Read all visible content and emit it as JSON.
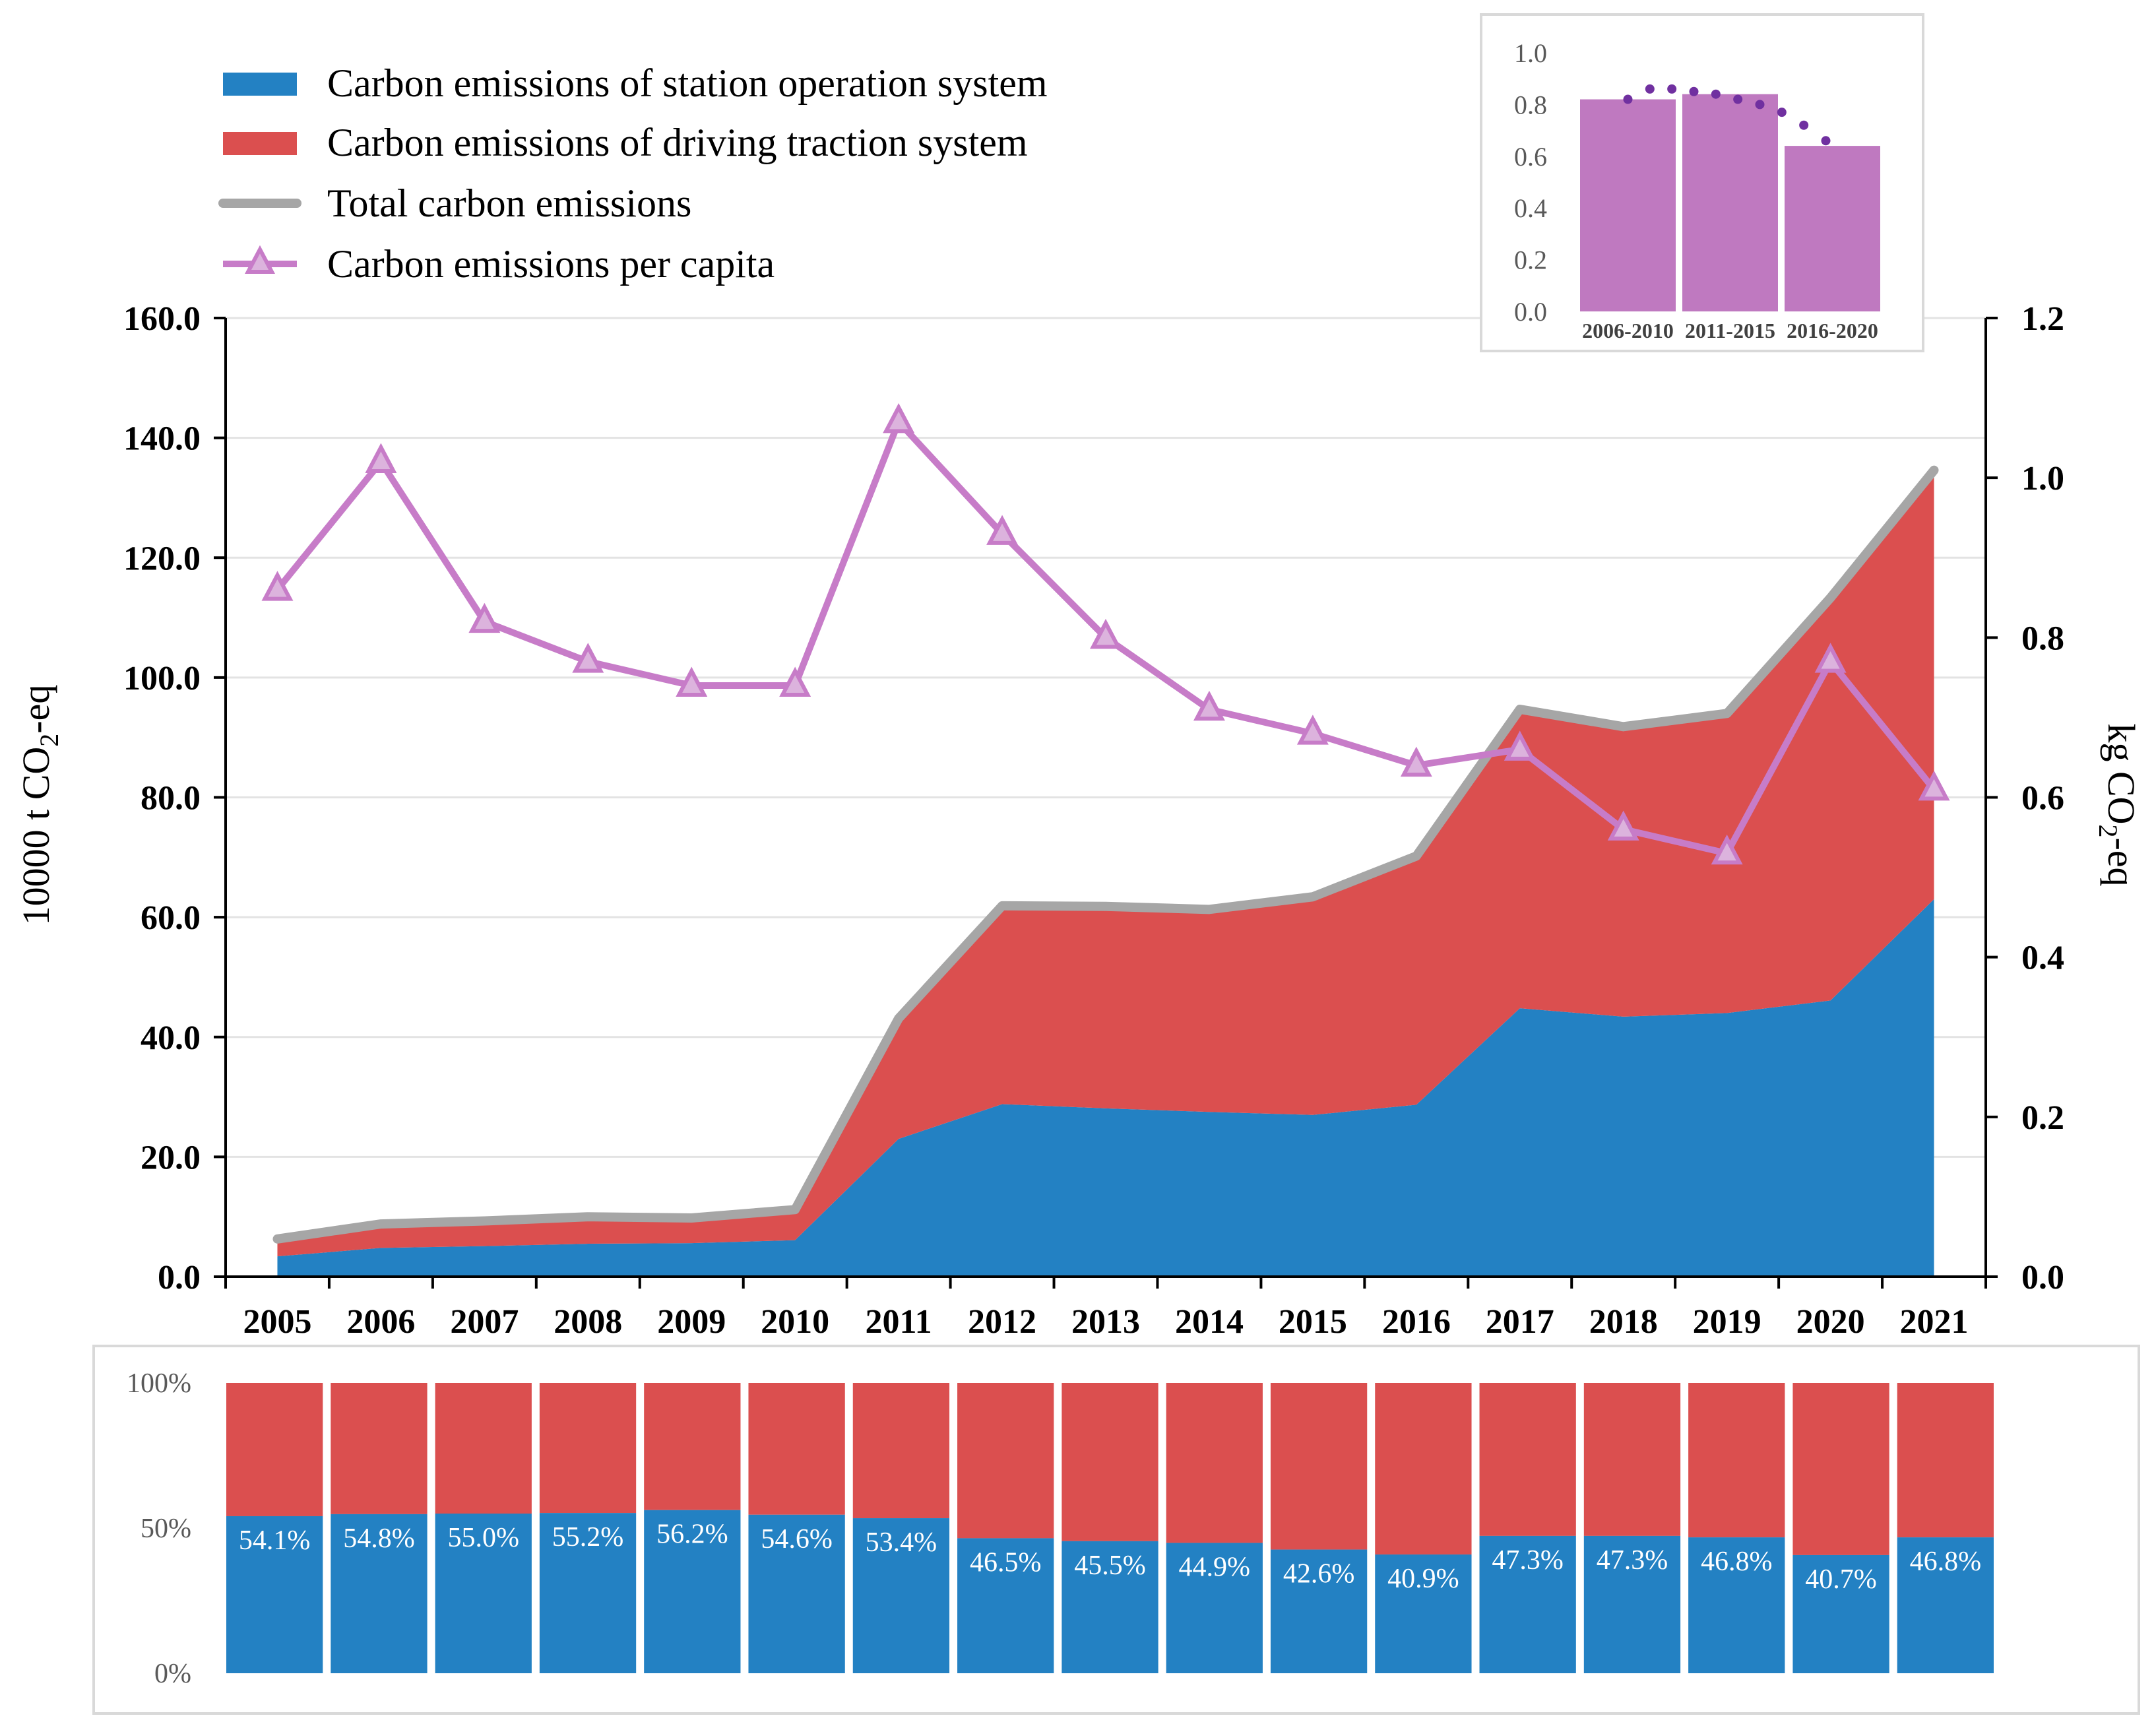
{
  "chart_data": [
    {
      "type": "area",
      "stacked": true,
      "categories": [
        "2005",
        "2006",
        "2007",
        "2008",
        "2009",
        "2010",
        "2011",
        "2012",
        "2013",
        "2014",
        "2015",
        "2016",
        "2017",
        "2018",
        "2019",
        "2020",
        "2021"
      ],
      "series": [
        {
          "name": "Carbon emissions of station operation system",
          "color": "#2381c3",
          "values": [
            3.4,
            4.8,
            5.1,
            5.5,
            5.6,
            6.1,
            23.0,
            28.8,
            28.1,
            27.5,
            27.0,
            28.7,
            44.8,
            43.4,
            44.0,
            46.1,
            63.0
          ]
        },
        {
          "name": "Carbon emissions of driving traction system",
          "color": "#db4f4f",
          "values": [
            2.9,
            4.0,
            4.2,
            4.5,
            4.2,
            5.1,
            20.1,
            33.1,
            33.7,
            33.8,
            36.4,
            41.5,
            49.9,
            48.4,
            50.0,
            67.2,
            71.6
          ]
        }
      ],
      "total": {
        "name": "Total carbon emissions",
        "color": "#a6a6a6",
        "values": [
          6.3,
          8.8,
          9.3,
          10.0,
          9.8,
          11.2,
          43.1,
          61.9,
          61.8,
          61.3,
          63.4,
          70.2,
          94.7,
          91.8,
          94.0,
          113.3,
          134.6
        ]
      },
      "per_capita": {
        "name": "Carbon emissions per capita",
        "color": "#c77cc8",
        "values": [
          0.86,
          1.02,
          0.82,
          0.77,
          0.74,
          0.74,
          1.07,
          0.93,
          0.8,
          0.71,
          0.68,
          0.64,
          0.66,
          0.56,
          0.53,
          0.77,
          0.61
        ]
      },
      "ylabel_left": "10000 t CO",
      "ylabel_left_sub": "2",
      "ylabel_left_tail": "-eq",
      "ylabel_right": "kg CO",
      "ylabel_right_sub": "2",
      "ylabel_right_tail": "-eq",
      "ylim_left": [
        0,
        160
      ],
      "yticks_left": [
        "0.0",
        "20.0",
        "40.0",
        "60.0",
        "80.0",
        "100.0",
        "120.0",
        "140.0",
        "160.0"
      ],
      "ylim_right": [
        0,
        1.2
      ],
      "yticks_right": [
        "0.0",
        "0.2",
        "0.4",
        "0.6",
        "0.8",
        "1.0",
        "1.2"
      ],
      "grid": true,
      "legend_position": "top-left"
    },
    {
      "type": "bar",
      "title": "",
      "categories": [
        "2006-2010",
        "2011-2015",
        "2016-2020"
      ],
      "values": [
        0.82,
        0.84,
        0.64
      ],
      "trend": [
        0.82,
        0.86,
        0.86,
        0.85,
        0.84,
        0.82,
        0.8,
        0.77,
        0.72,
        0.66
      ],
      "ylim": [
        0,
        1.0
      ],
      "yticks": [
        "0.0",
        "0.2",
        "0.4",
        "0.6",
        "0.8",
        "1.0"
      ],
      "bar_color": "#bf79c0",
      "trend_color": "#7030a0",
      "legend_position": "top-right inset"
    },
    {
      "type": "bar",
      "stacked_percent": true,
      "categories": [
        "2005",
        "2006",
        "2007",
        "2008",
        "2009",
        "2010",
        "2011",
        "2012",
        "2013",
        "2014",
        "2015",
        "2016",
        "2017",
        "2018",
        "2019",
        "2020",
        "2021"
      ],
      "values": [
        54.1,
        54.8,
        55.0,
        55.2,
        56.2,
        54.6,
        53.4,
        46.5,
        45.5,
        44.9,
        42.6,
        40.9,
        47.3,
        47.3,
        46.8,
        40.7,
        46.8
      ],
      "labels": [
        "54.1%",
        "54.8%",
        "55.0%",
        "55.2%",
        "56.2%",
        "54.6%",
        "53.4%",
        "46.5%",
        "45.5%",
        "44.9%",
        "42.6%",
        "40.9%",
        "47.3%",
        "47.3%",
        "46.8%",
        "40.7%",
        "46.8%"
      ],
      "yticks": [
        "0%",
        "50%",
        "100%"
      ],
      "ylim": [
        0,
        100
      ],
      "station_color": "#2381c3",
      "traction_color": "#db4f4f"
    }
  ]
}
